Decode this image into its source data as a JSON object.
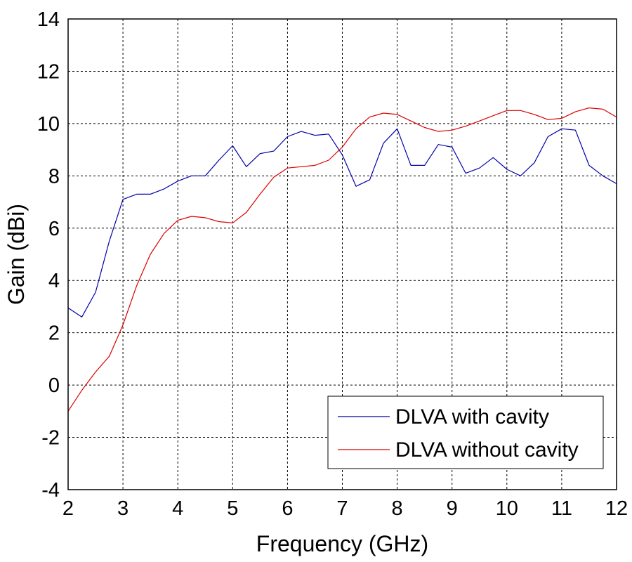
{
  "chart_data": {
    "type": "line",
    "title": "",
    "xlabel": "Frequency (GHz)",
    "ylabel": "Gain (dBi)",
    "xlim": [
      2,
      12
    ],
    "ylim": [
      -4,
      14
    ],
    "xticks": [
      2,
      3,
      4,
      5,
      6,
      7,
      8,
      9,
      10,
      11,
      12
    ],
    "yticks": [
      -4,
      -2,
      0,
      2,
      4,
      6,
      8,
      10,
      12,
      14
    ],
    "grid": true,
    "legend_position": "bottom-right",
    "series": [
      {
        "name": "DLVA with cavity",
        "color": "#0000aa",
        "x": [
          2,
          2.25,
          2.5,
          2.75,
          3,
          3.25,
          3.5,
          3.75,
          4,
          4.25,
          4.5,
          4.75,
          5,
          5.25,
          5.5,
          5.75,
          6,
          6.25,
          6.5,
          6.75,
          7,
          7.25,
          7.5,
          7.75,
          8,
          8.25,
          8.5,
          8.75,
          9,
          9.25,
          9.5,
          9.75,
          10,
          10.25,
          10.5,
          10.75,
          11,
          11.25,
          11.5,
          11.75,
          12
        ],
        "y": [
          2.95,
          2.6,
          3.55,
          5.5,
          7.1,
          7.3,
          7.3,
          7.5,
          7.8,
          8.0,
          8.0,
          8.6,
          9.15,
          8.35,
          8.85,
          8.95,
          9.5,
          9.7,
          9.55,
          9.6,
          8.8,
          7.6,
          7.85,
          9.25,
          9.8,
          8.4,
          8.4,
          9.2,
          9.1,
          8.1,
          8.3,
          8.7,
          8.25,
          8.0,
          8.5,
          9.5,
          9.8,
          9.75,
          8.4,
          8.0,
          7.7
        ]
      },
      {
        "name": "DLVA without cavity",
        "color": "#dd0000",
        "x": [
          2,
          2.25,
          2.5,
          2.75,
          3,
          3.25,
          3.5,
          3.75,
          4,
          4.25,
          4.5,
          4.75,
          5,
          5.25,
          5.5,
          5.75,
          6,
          6.25,
          6.5,
          6.75,
          7,
          7.25,
          7.5,
          7.75,
          8,
          8.25,
          8.5,
          8.75,
          9,
          9.25,
          9.5,
          9.75,
          10,
          10.25,
          10.5,
          10.75,
          11,
          11.25,
          11.5,
          11.75,
          12
        ],
        "y": [
          -1.0,
          -0.2,
          0.5,
          1.1,
          2.3,
          3.8,
          5.0,
          5.8,
          6.3,
          6.45,
          6.4,
          6.25,
          6.2,
          6.6,
          7.3,
          7.95,
          8.3,
          8.35,
          8.4,
          8.6,
          9.1,
          9.8,
          10.25,
          10.4,
          10.35,
          10.1,
          9.85,
          9.7,
          9.75,
          9.9,
          10.1,
          10.3,
          10.5,
          10.5,
          10.35,
          10.15,
          10.2,
          10.45,
          10.6,
          10.55,
          10.25
        ]
      }
    ]
  }
}
